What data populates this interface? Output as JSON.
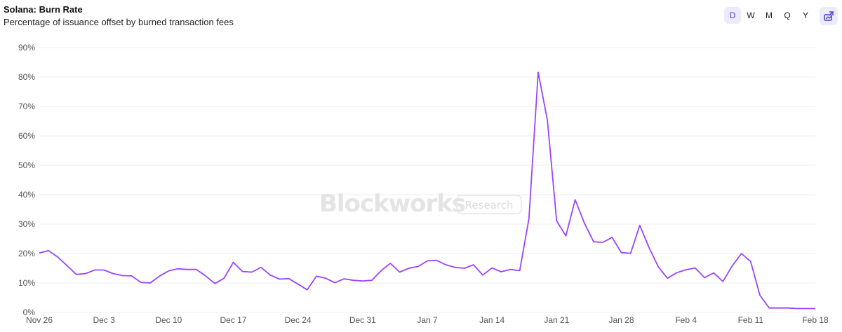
{
  "header": {
    "title": "Solana: Burn Rate",
    "subtitle": "Percentage of issuance offset by burned transaction fees"
  },
  "range_buttons": [
    {
      "label": "D",
      "active": true
    },
    {
      "label": "W",
      "active": false
    },
    {
      "label": "M",
      "active": false
    },
    {
      "label": "Q",
      "active": false
    },
    {
      "label": "Y",
      "active": false
    }
  ],
  "share_icon": "share-image-icon",
  "watermark": {
    "brand": "Blockworks",
    "tag": "Research"
  },
  "colors": {
    "line": "#9945ff",
    "grid": "#ececec",
    "accent": "#4b3fd0"
  },
  "chart_data": {
    "type": "line",
    "title": "Solana: Burn Rate",
    "subtitle": "Percentage of issuance offset by burned transaction fees",
    "xlabel": "",
    "ylabel": "",
    "x_start": "2023-11-26",
    "x_end": "2024-02-18",
    "x_tick_labels": [
      "Nov 26",
      "Dec 3",
      "Dec 10",
      "Dec 17",
      "Dec 24",
      "Dec 31",
      "Jan 7",
      "Jan 14",
      "Jan 21",
      "Jan 28",
      "Feb 4",
      "Feb 11",
      "Feb 18"
    ],
    "y_tick_labels": [
      "0%",
      "10%",
      "20%",
      "30%",
      "40%",
      "50%",
      "60%",
      "70%",
      "80%",
      "90%"
    ],
    "ylim": [
      0,
      90
    ],
    "grid": true,
    "series": [
      {
        "values": [
          20.2,
          21.0,
          18.8,
          15.9,
          12.9,
          13.2,
          14.4,
          14.4,
          13.2,
          12.5,
          12.4,
          10.2,
          10.0,
          12.3,
          14.1,
          14.8,
          14.6,
          14.6,
          12.4,
          9.8,
          11.6,
          17.0,
          13.9,
          13.7,
          15.3,
          12.7,
          11.3,
          11.5,
          9.6,
          7.7,
          12.3,
          11.6,
          10.1,
          11.4,
          10.9,
          10.7,
          10.9,
          14.2,
          16.7,
          13.7,
          15.0,
          15.6,
          17.5,
          17.7,
          16.2,
          15.3,
          15.0,
          16.2,
          12.7,
          15.1,
          13.8,
          14.6,
          14.2,
          31.8,
          81.6,
          65.2,
          31.1,
          26.0,
          38.3,
          30.4,
          24.0,
          23.8,
          25.5,
          20.3,
          20.1,
          29.6,
          22.0,
          15.5,
          11.6,
          13.5,
          14.5,
          15.1,
          11.8,
          13.4,
          10.5,
          15.8,
          20.0,
          17.3,
          5.8,
          1.5,
          1.5,
          1.5,
          1.3,
          1.3,
          1.3
        ]
      }
    ]
  }
}
